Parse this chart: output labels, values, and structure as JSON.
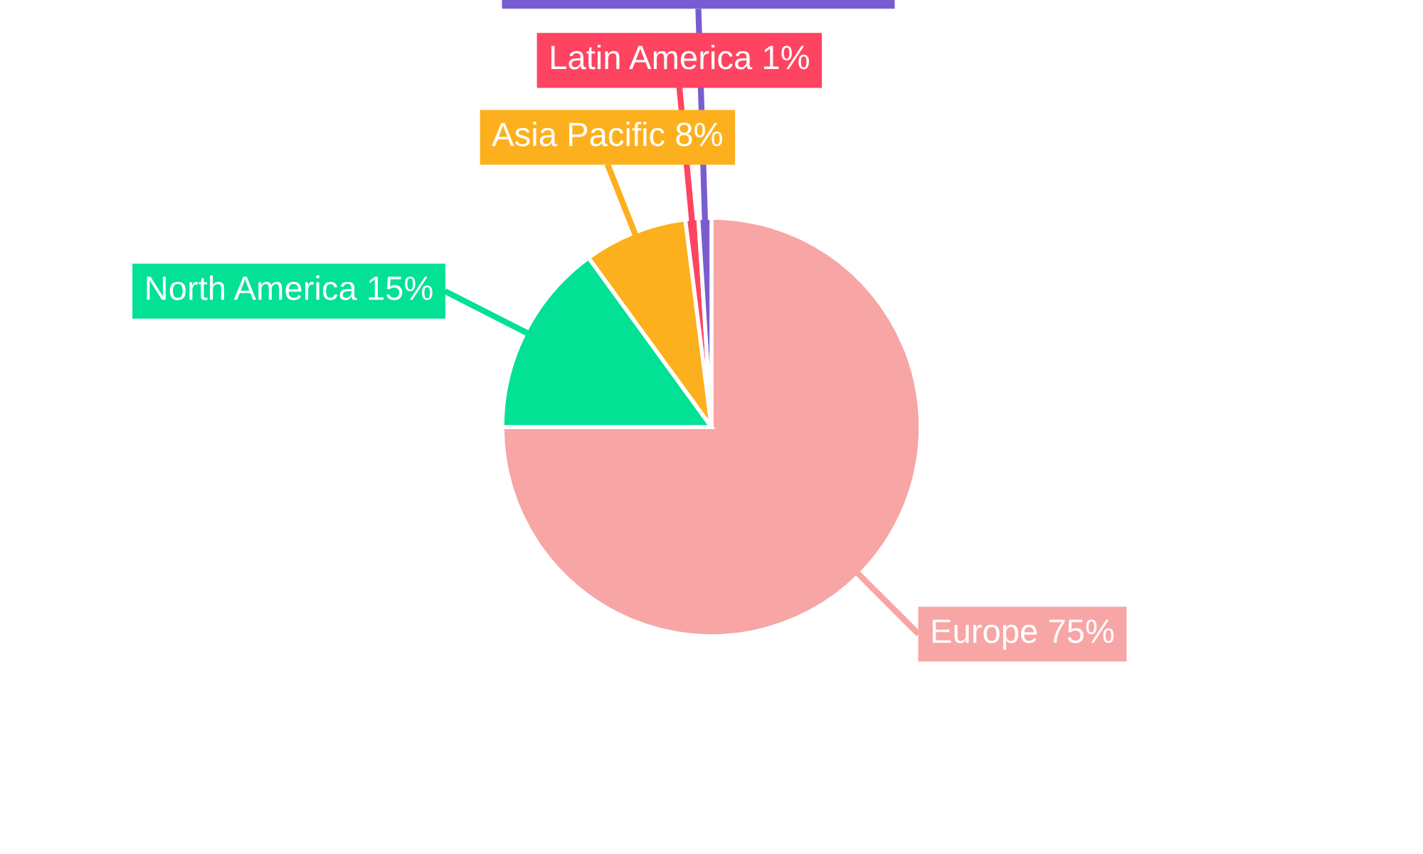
{
  "chart_data": {
    "type": "pie",
    "categories": [
      "Europe",
      "North America",
      "Asia Pacific",
      "Latin America",
      null
    ],
    "values": [
      75,
      15,
      8,
      1,
      1
    ],
    "value_labels": [
      "75%",
      "15%",
      "8%",
      "1%",
      null
    ],
    "colors": [
      "#f8a5a5",
      "#02e194",
      "#fdb01d",
      "#fe4460",
      "#775dd0"
    ]
  }
}
